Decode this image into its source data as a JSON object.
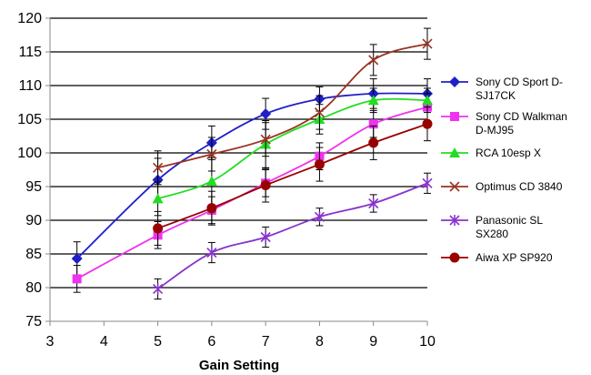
{
  "chart_data": {
    "type": "line",
    "title": "",
    "xlabel": "Gain Setting",
    "ylabel": "",
    "xlim": [
      3,
      10
    ],
    "ylim": [
      75,
      120
    ],
    "xticks": [
      "3",
      "4",
      "5",
      "6",
      "7",
      "8",
      "9",
      "10"
    ],
    "yticks": [
      "75",
      "80",
      "85",
      "90",
      "95",
      "100",
      "105",
      "110",
      "115",
      "120"
    ],
    "grid": "horizontal",
    "legend_position": "right",
    "series": [
      {
        "name": "Sony CD Sport D-SJ17CK",
        "legend_lines": [
          "Sony CD Sport D-",
          "SJ17CK"
        ],
        "color": "#1f1fc8",
        "marker": "diamond",
        "x": [
          3.5,
          5,
          6,
          7,
          8,
          9,
          10
        ],
        "y": [
          84.3,
          96,
          101.5,
          105.8,
          108,
          108.8,
          108.8
        ],
        "err": [
          2.5,
          3.2,
          2.5,
          2.3,
          1.8,
          2.2,
          2.2
        ]
      },
      {
        "name": "Sony CD Walkman D-MJ95",
        "legend_lines": [
          "Sony CD Walkman",
          "D-MJ95"
        ],
        "color": "#ee33ee",
        "marker": "square",
        "x": [
          3.5,
          5,
          6,
          7,
          8,
          9,
          10
        ],
        "y": [
          81.3,
          87.8,
          91.5,
          95.5,
          99.5,
          104.3,
          106.8
        ],
        "err": [
          2.0,
          2.0,
          2.0,
          2.0,
          2.0,
          2.0,
          2.0
        ]
      },
      {
        "name": "RCA 10esp X",
        "legend_lines": [
          "RCA 10esp X"
        ],
        "color": "#22dd22",
        "marker": "triangle",
        "x": [
          5,
          6,
          7,
          8,
          9,
          10
        ],
        "y": [
          93.2,
          95.8,
          101.3,
          105,
          107.8,
          107.8
        ],
        "err": [
          2.5,
          3.5,
          3.5,
          2.2,
          1.8,
          1.8
        ]
      },
      {
        "name": "Optimus CD 3840",
        "legend_lines": [
          "Optimus CD 3840"
        ],
        "color": "#993322",
        "marker": "x",
        "x": [
          5,
          6,
          7,
          8,
          9,
          10
        ],
        "y": [
          97.8,
          99.8,
          102,
          106,
          113.8,
          116.2
        ],
        "err": [
          2.5,
          2.5,
          2.5,
          2.5,
          2.3,
          2.3
        ]
      },
      {
        "name": "Panasonic SL SX280",
        "legend_lines": [
          "Panasonic SL",
          "SX280"
        ],
        "color": "#8833cc",
        "marker": "star",
        "x": [
          5,
          6,
          7,
          8,
          9,
          10
        ],
        "y": [
          79.8,
          85.2,
          87.5,
          90.5,
          92.5,
          95.5
        ],
        "err": [
          1.5,
          1.5,
          1.5,
          1.3,
          1.3,
          1.5
        ]
      },
      {
        "name": "Aiwa XP SP920",
        "legend_lines": [
          "Aiwa XP SP920"
        ],
        "color": "#990000",
        "marker": "circle",
        "x": [
          5,
          6,
          7,
          8,
          9,
          10
        ],
        "y": [
          88.8,
          91.8,
          95.2,
          98.3,
          101.5,
          104.3
        ],
        "err": [
          2.5,
          2.5,
          2.5,
          2.5,
          2.5,
          2.5
        ]
      }
    ]
  }
}
